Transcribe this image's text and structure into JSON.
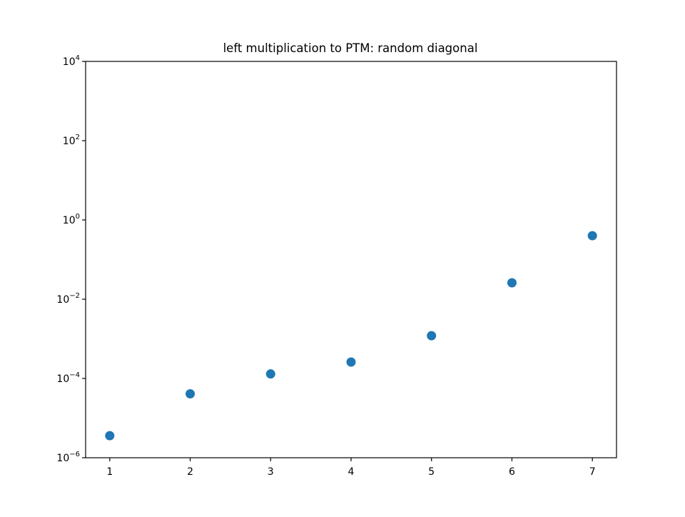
{
  "chart_data": {
    "type": "scatter",
    "title": "left multiplication to PTM: random diagonal",
    "xlabel": "",
    "ylabel": "",
    "x_ticks": [
      1,
      2,
      3,
      4,
      5,
      6,
      7
    ],
    "xlim": [
      0.7,
      7.3
    ],
    "yscale": "log",
    "ylim": [
      1e-06,
      10000.0
    ],
    "y_ticks": [
      {
        "value": 1e-06,
        "base": "10",
        "exp": "−6"
      },
      {
        "value": 0.0001,
        "base": "10",
        "exp": "−4"
      },
      {
        "value": 0.01,
        "base": "10",
        "exp": "−2"
      },
      {
        "value": 1,
        "base": "10",
        "exp": "0"
      },
      {
        "value": 100.0,
        "base": "10",
        "exp": "2"
      },
      {
        "value": 10000.0,
        "base": "10",
        "exp": "4"
      }
    ],
    "grid": false,
    "series": [
      {
        "color": "#1f77b4",
        "x": [
          1,
          2,
          3,
          4,
          5,
          6,
          7
        ],
        "y": [
          3.6e-06,
          4.1e-05,
          0.00013,
          0.00026,
          0.0012,
          0.026,
          0.4
        ]
      }
    ]
  }
}
